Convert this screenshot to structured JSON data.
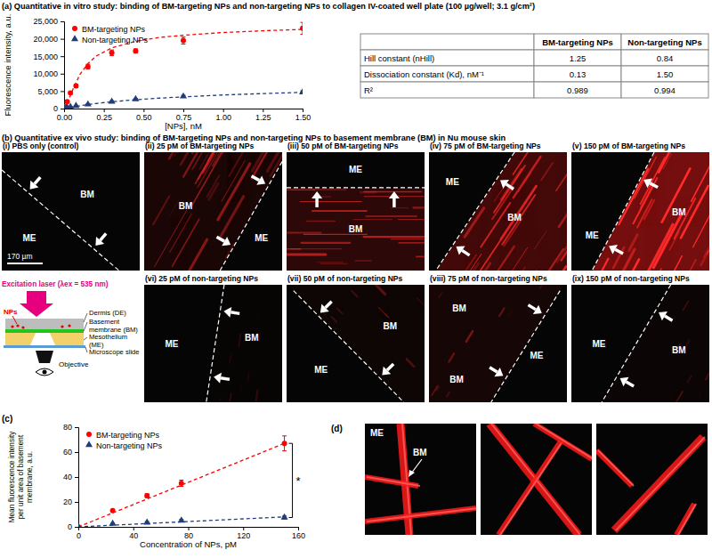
{
  "chart_data": [
    {
      "type": "scatter",
      "title": "(a) Quantitative in vitro study: binding of BM-targeting NPs and non-targeting NPs to collagen IV-coated well plate (100 µg/well; 3.1 g/cm²)",
      "x_label": "[NPs], nM",
      "y_label": "Fluorescence intensity, a.u.",
      "xlim": [
        0,
        1.5
      ],
      "xticks": [
        {
          "value": 0,
          "label": "0.00"
        },
        0.25,
        {
          "value": 0.5,
          "label": "0.50"
        },
        0.75,
        {
          "value": 1,
          "label": "1.00"
        },
        1.25,
        {
          "value": 1.5,
          "label": "1.50"
        }
      ],
      "ylim": [
        0,
        25000
      ],
      "yticks": [
        0,
        {
          "value": 5000,
          "label": "5,000"
        },
        {
          "value": 10000,
          "label": "10,000"
        },
        {
          "value": 15000,
          "label": "15,000"
        },
        {
          "value": 20000,
          "label": "20,000"
        },
        {
          "value": 25000,
          "label": "25,000"
        }
      ],
      "grid": false,
      "legend": "top-left",
      "series": [
        {
          "name": "BM-targeting NPs",
          "color": "#ff0000",
          "marker": "circle",
          "x": [
            0,
            0.01,
            0.02,
            0.04,
            0.075,
            0.15,
            0.3,
            0.45,
            0.75,
            1.5
          ],
          "values": [
            0,
            600,
            2000,
            4500,
            6500,
            12000,
            16000,
            16500,
            19500,
            23000
          ],
          "errors": [
            0,
            100,
            300,
            400,
            500,
            700,
            800,
            600,
            1000,
            1700
          ]
        },
        {
          "name": "Non-targeting NPs",
          "color": "#1f3d7a",
          "marker": "triangle",
          "x": [
            0,
            0.01,
            0.02,
            0.04,
            0.075,
            0.15,
            0.3,
            0.45,
            0.75,
            1.5
          ],
          "values": [
            0,
            100,
            250,
            500,
            800,
            1200,
            2000,
            2700,
            3500,
            4700
          ],
          "errors": [
            0,
            50,
            80,
            100,
            120,
            150,
            250,
            200,
            300,
            400
          ]
        }
      ],
      "fits": [
        {
          "color": "#ff0000",
          "line_style": "dashed",
          "x": [
            0,
            0.025,
            0.05,
            0.1,
            0.15,
            0.2,
            0.3,
            0.45,
            0.6,
            0.75,
            1,
            1.25,
            1.5
          ],
          "values": [
            0,
            2200,
            5000,
            9800,
            12900,
            15000,
            17400,
            19300,
            20400,
            21000,
            21800,
            22300,
            22700
          ]
        },
        {
          "color": "#1f3d7a",
          "line_style": "dashed",
          "x": [
            0,
            0.025,
            0.05,
            0.1,
            0.15,
            0.2,
            0.3,
            0.45,
            0.6,
            0.75,
            1,
            1.25,
            1.5
          ],
          "values": [
            0,
            200,
            400,
            800,
            1150,
            1450,
            1950,
            2550,
            3000,
            3350,
            3900,
            4300,
            4650
          ]
        }
      ]
    },
    {
      "type": "scatter",
      "title": "(c)",
      "x_label": "Concentration of NPs, pM",
      "y_label": [
        "Mean fluorescence intensity",
        "per unit area of basement",
        "membrane, a.u."
      ],
      "xlim": [
        0,
        160
      ],
      "xticks": [
        0,
        40,
        80,
        120,
        160
      ],
      "ylim": [
        0,
        80
      ],
      "yticks": [
        0,
        20,
        40,
        60,
        80
      ],
      "grid": false,
      "legend": "top-left",
      "series": [
        {
          "name": "BM-targeting NPs",
          "color": "#ff0000",
          "marker": "circle",
          "x": [
            0,
            25,
            50,
            75,
            150
          ],
          "values": [
            0,
            13,
            25,
            35,
            67
          ],
          "errors": [
            0,
            1,
            1.5,
            2.5,
            6
          ]
        },
        {
          "name": "Non-targeting NPs",
          "color": "#1f3d7a",
          "marker": "triangle",
          "x": [
            0,
            25,
            50,
            75,
            150
          ],
          "values": [
            0,
            2.5,
            3.5,
            5,
            7.5
          ],
          "errors": [
            0,
            0.5,
            0.8,
            1,
            1.2
          ]
        }
      ],
      "fits": [
        {
          "color": "#ff0000",
          "line_style": "dashed",
          "x": [
            0,
            150
          ],
          "values": [
            0,
            67
          ]
        },
        {
          "color": "#1f3d7a",
          "line_style": "dashed",
          "x": [
            0,
            150
          ],
          "values": [
            0,
            8
          ]
        }
      ],
      "annotations": [
        {
          "text": "*"
        }
      ]
    }
  ],
  "table": {
    "header": [
      "",
      "BM-targeting NPs",
      "Non-targeting NPs"
    ],
    "rows": [
      [
        "Hill constant (nHill)",
        "1.25",
        "0.84"
      ],
      [
        "Dissociation constant (Kd), nM⁻¹",
        "0.13",
        "1.50"
      ],
      [
        "R²",
        "0.989",
        "0.994"
      ]
    ]
  },
  "panel_b": {
    "title": "(b) Quantitative ex vivo study: binding of BM-targeting NPs and non-targeting NPs to basement membrane (BM) in Nu mouse skin",
    "scale_bar": "170 µm",
    "images": [
      {
        "label": "(i) PBS only (control)",
        "regions": [
          "BM",
          "ME"
        ]
      },
      {
        "label": "(ii) 25 pM of BM-targeting NPs",
        "regions": [
          "BM",
          "ME"
        ]
      },
      {
        "label": "(iii) 50 pM of BM-targeting NPs",
        "regions": [
          "ME",
          "BM"
        ]
      },
      {
        "label": "(iv) 75 pM of BM-targeting NPs",
        "regions": [
          "ME",
          "BM"
        ]
      },
      {
        "label": "(v) 150 pM of BM-targeting NPs",
        "regions": [
          "ME",
          "BM"
        ]
      },
      {
        "label": "(vi) 25 pM of non-targeting NPs",
        "regions": [
          "ME",
          "BM"
        ]
      },
      {
        "label": "(vii) 50 pM of non-targeting NPs",
        "regions": [
          "ME",
          "BM"
        ]
      },
      {
        "label": "(viii) 75 pM of non-targeting NPs",
        "regions": [
          "BM",
          "BM",
          "ME"
        ]
      },
      {
        "label": "(ix) 150 pM of non-targeting NPs",
        "regions": [
          "ME",
          "BM"
        ]
      }
    ]
  },
  "schematic": {
    "laser": "Excitation laser (λex = 535 nm)",
    "dermis": [
      "Dermis (DE)"
    ],
    "basement_membrane": [
      "Basement",
      "membrane (BM)"
    ],
    "mesothelium": [
      "Mesothelium",
      "(ME)"
    ],
    "slide": [
      "Microscope slide"
    ],
    "nps": "NPs",
    "objective": "Objective"
  },
  "panel_d": {
    "label": "(d)",
    "region_labels": [
      "ME",
      "BM"
    ]
  }
}
